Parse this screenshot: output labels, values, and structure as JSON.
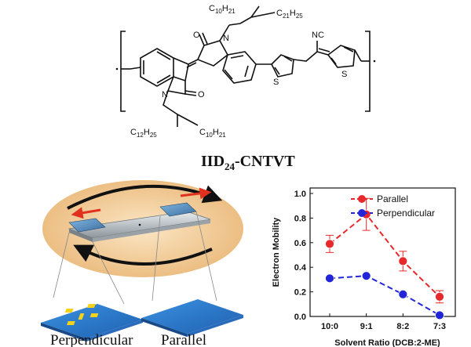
{
  "molecule": {
    "name_main": "IID",
    "name_sub": "24",
    "name_suffix": "-CNTVT",
    "atoms": {
      "n_top": "N",
      "n_bottom": "N",
      "o_top": "O",
      "o_bottom": "O",
      "s_left": "S",
      "s_right": "S",
      "nc": "NC",
      "side_top_left": "C10H21",
      "side_top_right": "C21H25",
      "side_bottom_left": "C12H25",
      "side_bottom_right": "C10H21"
    }
  },
  "device": {
    "label_perpendicular": "Perpendicular",
    "label_parallel": "Parallel",
    "colors": {
      "disk": "#f2c88f",
      "arrow_red": "#e0301e",
      "substrate": "#2f82d6",
      "electrode": "#f3d21a"
    }
  },
  "chart_data": {
    "type": "line",
    "categories": [
      "10:0",
      "9:1",
      "8:2",
      "7:3"
    ],
    "series": [
      {
        "name": "Parallel",
        "values": [
          0.59,
          0.83,
          0.45,
          0.16
        ],
        "errors": [
          0.07,
          0.13,
          0.08,
          0.05
        ],
        "color": "#e8292b"
      },
      {
        "name": "Perpendicular",
        "values": [
          0.31,
          0.33,
          0.18,
          0.01
        ],
        "errors": [
          0,
          0,
          0,
          0
        ],
        "color": "#2226d8"
      }
    ],
    "xlabel": "Solvent Ratio (DCB:2-ME)",
    "ylabel": "Electron Mobility",
    "ylim": [
      0.0,
      1.0
    ],
    "yticks": [
      "0.0",
      "0.2",
      "0.4",
      "0.6",
      "0.8",
      "1.0"
    ],
    "legend_position": "top-right",
    "grid": false
  }
}
